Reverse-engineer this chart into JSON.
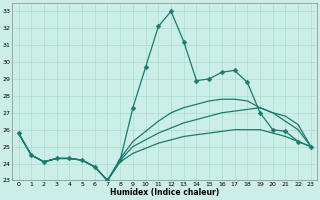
{
  "title": "",
  "xlabel": "Humidex (Indice chaleur)",
  "ylabel": "",
  "bg_color": "#cceee8",
  "grid_color": "#aaddcc",
  "line_color": "#1a7a6e",
  "xlim": [
    -0.5,
    23.5
  ],
  "ylim": [
    23,
    33.5
  ],
  "yticks": [
    23,
    24,
    25,
    26,
    27,
    28,
    29,
    30,
    31,
    32,
    33
  ],
  "xticks": [
    0,
    1,
    2,
    3,
    4,
    5,
    6,
    7,
    8,
    9,
    10,
    11,
    12,
    13,
    14,
    15,
    16,
    17,
    18,
    19,
    20,
    21,
    22,
    23
  ],
  "series_main": [
    25.8,
    24.5,
    24.1,
    24.3,
    24.3,
    24.2,
    23.8,
    23.0,
    24.2,
    27.3,
    29.7,
    32.1,
    33.0,
    31.2,
    28.9,
    29.0,
    29.4,
    29.5,
    28.8,
    27.0,
    26.0,
    25.9,
    25.3,
    25.0
  ],
  "series_smooth": [
    [
      25.8,
      24.5,
      24.1,
      24.3,
      24.3,
      24.2,
      23.8,
      23.0,
      24.3,
      25.3,
      25.9,
      26.5,
      27.0,
      27.3,
      27.5,
      27.7,
      27.8,
      27.8,
      27.7,
      27.3,
      27.0,
      26.8,
      26.3,
      25.0
    ],
    [
      25.8,
      24.5,
      24.1,
      24.3,
      24.3,
      24.2,
      23.8,
      23.0,
      24.2,
      25.0,
      25.4,
      25.8,
      26.1,
      26.4,
      26.6,
      26.8,
      27.0,
      27.1,
      27.2,
      27.3,
      27.0,
      26.5,
      26.0,
      25.0
    ],
    [
      25.8,
      24.5,
      24.1,
      24.3,
      24.3,
      24.2,
      23.8,
      23.0,
      24.1,
      24.6,
      24.9,
      25.2,
      25.4,
      25.6,
      25.7,
      25.8,
      25.9,
      26.0,
      26.0,
      26.0,
      25.8,
      25.6,
      25.3,
      25.0
    ]
  ],
  "marker": "D",
  "marker_size": 2.5,
  "line_width": 0.9
}
